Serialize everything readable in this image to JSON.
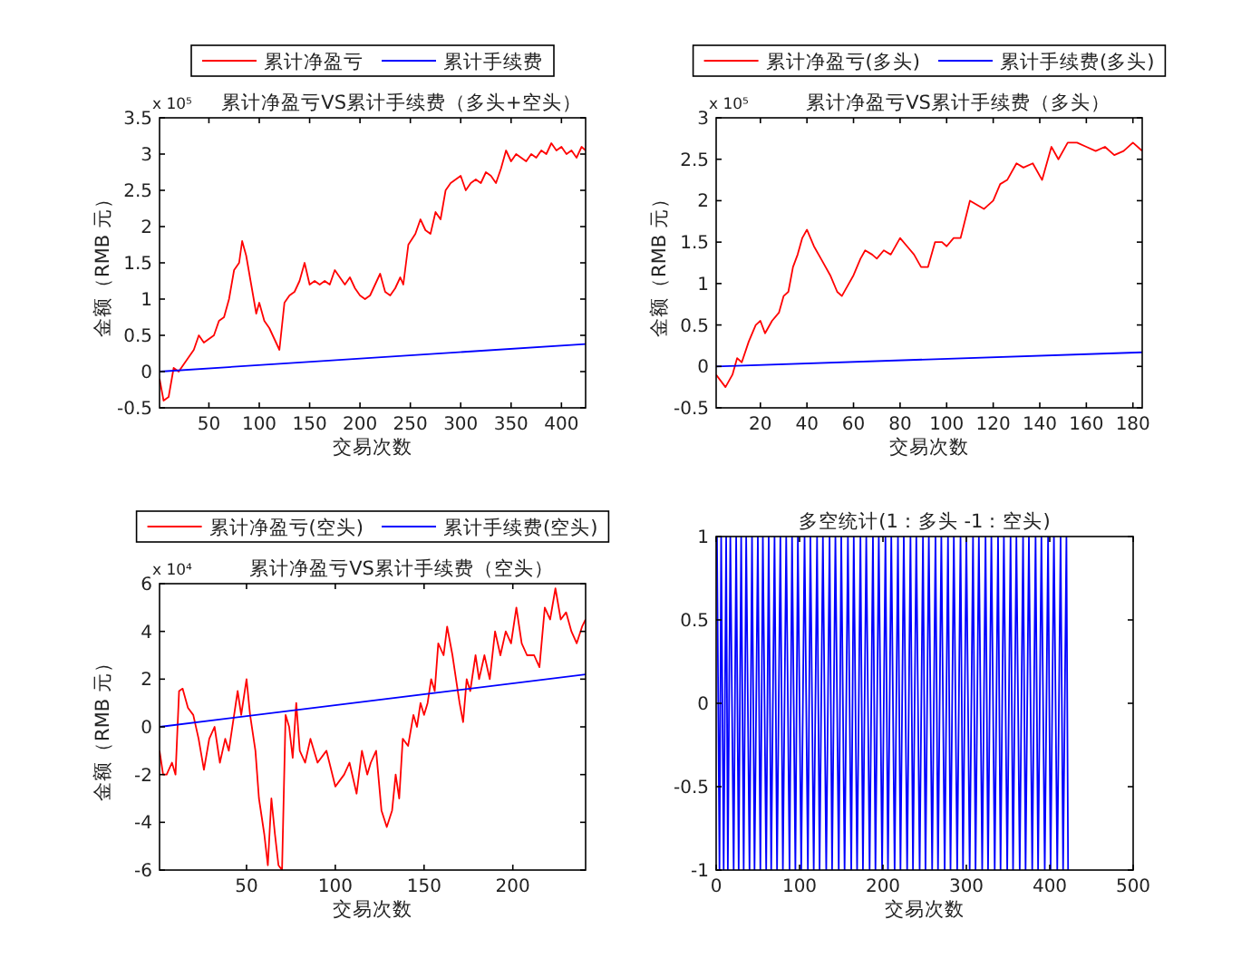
{
  "chart_data": [
    {
      "type": "line",
      "title": "累计净盈亏VS累计手续费（多头+空头）",
      "xlabel": "交易次数",
      "ylabel": "金额（RMB 元）",
      "annotations": [
        "x 10⁵"
      ],
      "legend": "top",
      "xlim": [
        1,
        424
      ],
      "xticks": [
        50,
        100,
        150,
        200,
        250,
        300,
        350,
        400
      ],
      "ylim": [
        -0.5,
        3.5
      ],
      "yticks": [
        -0.5,
        0,
        0.5,
        1,
        1.5,
        2,
        2.5,
        3,
        3.5
      ],
      "series": [
        {
          "name": "累计净盈亏",
          "color": "#ff0000",
          "x": [
            1,
            5,
            10,
            15,
            20,
            25,
            30,
            35,
            40,
            45,
            50,
            55,
            60,
            65,
            70,
            75,
            80,
            83,
            87,
            92,
            97,
            100,
            105,
            110,
            115,
            120,
            125,
            130,
            135,
            140,
            145,
            150,
            155,
            160,
            165,
            170,
            175,
            180,
            185,
            190,
            195,
            200,
            205,
            210,
            215,
            220,
            225,
            230,
            235,
            240,
            243,
            248,
            255,
            260,
            265,
            270,
            275,
            280,
            285,
            290,
            295,
            300,
            305,
            310,
            315,
            320,
            325,
            330,
            335,
            340,
            345,
            350,
            355,
            360,
            365,
            370,
            375,
            380,
            385,
            390,
            395,
            400,
            405,
            410,
            415,
            420,
            424
          ],
          "values": [
            -0.1,
            -0.4,
            -0.35,
            0.05,
            0,
            0.1,
            0.2,
            0.3,
            0.5,
            0.4,
            0.45,
            0.5,
            0.7,
            0.75,
            1.0,
            1.4,
            1.5,
            1.8,
            1.6,
            1.2,
            0.8,
            0.95,
            0.7,
            0.6,
            0.45,
            0.3,
            0.95,
            1.05,
            1.1,
            1.25,
            1.5,
            1.2,
            1.25,
            1.2,
            1.25,
            1.2,
            1.4,
            1.3,
            1.2,
            1.3,
            1.15,
            1.05,
            1.0,
            1.05,
            1.2,
            1.35,
            1.1,
            1.05,
            1.15,
            1.3,
            1.2,
            1.75,
            1.9,
            2.1,
            1.95,
            1.9,
            2.2,
            2.1,
            2.5,
            2.6,
            2.65,
            2.7,
            2.5,
            2.6,
            2.65,
            2.6,
            2.75,
            2.7,
            2.6,
            2.8,
            3.05,
            2.9,
            3.0,
            2.95,
            2.9,
            3.0,
            2.95,
            3.05,
            3.0,
            3.15,
            3.05,
            3.1,
            3.0,
            3.05,
            2.95,
            3.1,
            3.05
          ]
        },
        {
          "name": "累计手续费",
          "color": "#0000ff",
          "x": [
            1,
            424
          ],
          "values": [
            0,
            0.38
          ]
        }
      ]
    },
    {
      "type": "line",
      "title": "累计净盈亏VS累计手续费（多头）",
      "xlabel": "交易次数",
      "ylabel": "金额（RMB 元）",
      "annotations": [
        "x 10⁵"
      ],
      "legend": "top",
      "xlim": [
        1,
        184
      ],
      "xticks": [
        20,
        40,
        60,
        80,
        100,
        120,
        140,
        160,
        180
      ],
      "ylim": [
        -0.5,
        3
      ],
      "yticks": [
        -0.5,
        0,
        0.5,
        1,
        1.5,
        2,
        2.5,
        3
      ],
      "series": [
        {
          "name": "累计净盈亏(多头)",
          "color": "#ff0000",
          "x": [
            1,
            5,
            8,
            10,
            12,
            15,
            18,
            20,
            22,
            25,
            28,
            30,
            32,
            34,
            36,
            38,
            40,
            43,
            46,
            50,
            53,
            55,
            58,
            60,
            63,
            65,
            68,
            70,
            73,
            76,
            80,
            83,
            86,
            89,
            92,
            95,
            98,
            100,
            103,
            106,
            110,
            113,
            116,
            120,
            123,
            126,
            130,
            133,
            137,
            141,
            145,
            148,
            152,
            156,
            160,
            164,
            168,
            172,
            176,
            180,
            184
          ],
          "values": [
            -0.1,
            -0.25,
            -0.1,
            0.1,
            0.05,
            0.3,
            0.5,
            0.55,
            0.4,
            0.55,
            0.65,
            0.85,
            0.9,
            1.2,
            1.35,
            1.55,
            1.65,
            1.45,
            1.3,
            1.1,
            0.9,
            0.85,
            1.0,
            1.1,
            1.3,
            1.4,
            1.35,
            1.3,
            1.4,
            1.35,
            1.55,
            1.45,
            1.35,
            1.2,
            1.2,
            1.5,
            1.5,
            1.45,
            1.55,
            1.55,
            2.0,
            1.95,
            1.9,
            2.0,
            2.2,
            2.25,
            2.45,
            2.4,
            2.45,
            2.25,
            2.65,
            2.5,
            2.7,
            2.7,
            2.65,
            2.6,
            2.65,
            2.55,
            2.6,
            2.7,
            2.6
          ]
        },
        {
          "name": "累计手续费(多头)",
          "color": "#0000ff",
          "x": [
            1,
            184
          ],
          "values": [
            0,
            0.17
          ]
        }
      ]
    },
    {
      "type": "line",
      "title": "累计净盈亏VS累计手续费（空头）",
      "xlabel": "交易次数",
      "ylabel": "金额（RMB 元）",
      "annotations": [
        "x 10⁴"
      ],
      "legend": "top",
      "xlim": [
        1,
        241
      ],
      "xticks": [
        50,
        100,
        150,
        200
      ],
      "ylim": [
        -6,
        6
      ],
      "yticks": [
        -6,
        -4,
        -2,
        0,
        2,
        4,
        6
      ],
      "series": [
        {
          "name": "累计净盈亏(空头)",
          "color": "#ff0000",
          "x": [
            1,
            3,
            5,
            8,
            10,
            12,
            14,
            17,
            20,
            23,
            26,
            29,
            32,
            35,
            38,
            40,
            43,
            45,
            47,
            50,
            52,
            55,
            57,
            60,
            62,
            64,
            66,
            68,
            70,
            72,
            74,
            76,
            78,
            80,
            83,
            86,
            90,
            95,
            100,
            105,
            108,
            112,
            115,
            118,
            120,
            123,
            126,
            129,
            132,
            134,
            136,
            138,
            141,
            144,
            146,
            148,
            150,
            152,
            154,
            156,
            158,
            161,
            163,
            166,
            168,
            170,
            172,
            174,
            176,
            179,
            181,
            184,
            187,
            190,
            193,
            196,
            199,
            202,
            205,
            208,
            212,
            215,
            218,
            221,
            224,
            227,
            230,
            233,
            236,
            239,
            241
          ],
          "values": [
            -1,
            -2,
            -2,
            -1.5,
            -2,
            1.5,
            1.6,
            0.8,
            0.5,
            -0.5,
            -1.8,
            -0.5,
            0,
            -1.5,
            -0.5,
            -1,
            0.5,
            1.5,
            0.5,
            2,
            0.5,
            -1,
            -3,
            -4.5,
            -5.8,
            -3,
            -4.5,
            -5.8,
            -6,
            0.5,
            0,
            -1.3,
            1,
            -1,
            -1.5,
            -0.5,
            -1.5,
            -1,
            -2.5,
            -2,
            -1.5,
            -2.8,
            -1,
            -2,
            -1.5,
            -1,
            -3.5,
            -4.2,
            -3.5,
            -2,
            -3,
            -0.5,
            -0.8,
            0.5,
            0,
            1,
            0.5,
            1,
            2,
            1.5,
            3.5,
            3,
            4.2,
            3,
            2,
            1,
            0.2,
            2,
            1.5,
            3,
            2,
            3,
            2,
            4,
            3,
            4,
            3.5,
            5,
            3.5,
            3,
            3,
            2.5,
            5,
            4.5,
            5.8,
            4.5,
            4.8,
            4,
            3.5,
            4.2,
            4.5
          ]
        },
        {
          "name": "累计手续费(空头)",
          "color": "#0000ff",
          "x": [
            1,
            241
          ],
          "values": [
            0,
            2.2
          ]
        }
      ]
    },
    {
      "type": "line",
      "title": "多空统计(1：多头 -1：空头)",
      "xlabel": "交易次数",
      "xlim": [
        0,
        500
      ],
      "xticks": [
        0,
        100,
        200,
        300,
        400,
        500
      ],
      "ylim": [
        -1,
        1
      ],
      "yticks": [
        -1,
        -0.5,
        0,
        0.5,
        1
      ],
      "series": [
        {
          "color": "#0000ff",
          "x": [
            1,
            4,
            6,
            9,
            12,
            14,
            17,
            21,
            24,
            27,
            30,
            33,
            36,
            40,
            43,
            46,
            50,
            53,
            56,
            60,
            63,
            66,
            70,
            73,
            77,
            80,
            84,
            88,
            91,
            95,
            98,
            102,
            106,
            110,
            113,
            117,
            121,
            124,
            128,
            132,
            136,
            139,
            143,
            147,
            150,
            154,
            158,
            162,
            165,
            169,
            173,
            176,
            180,
            184,
            188,
            191,
            195,
            199,
            203,
            206,
            210,
            214,
            218,
            221,
            225,
            229,
            233,
            236,
            240,
            244,
            248,
            251,
            255,
            259,
            263,
            266,
            270,
            274,
            278,
            281,
            285,
            289,
            293,
            296,
            300,
            304,
            308,
            311,
            315,
            319,
            323,
            326,
            330,
            334,
            338,
            341,
            345,
            349,
            353,
            356,
            360,
            364,
            368,
            371,
            375,
            379,
            383,
            386,
            390,
            394,
            398,
            401,
            405,
            409,
            413,
            416,
            420,
            422
          ],
          "values": [
            1,
            -1,
            1,
            -1,
            1,
            -1,
            1,
            -1,
            1,
            -1,
            1,
            -1,
            1,
            -1,
            1,
            -1,
            1,
            -1,
            1,
            -1,
            1,
            -1,
            1,
            -1,
            1,
            -1,
            1,
            -1,
            1,
            -1,
            1,
            -1,
            1,
            -1,
            1,
            -1,
            1,
            -1,
            1,
            -1,
            1,
            -1,
            1,
            -1,
            1,
            -1,
            1,
            -1,
            1,
            -1,
            1,
            -1,
            1,
            -1,
            1,
            -1,
            1,
            -1,
            1,
            -1,
            1,
            -1,
            1,
            -1,
            1,
            -1,
            1,
            -1,
            1,
            -1,
            1,
            -1,
            1,
            -1,
            1,
            -1,
            1,
            -1,
            1,
            -1,
            1,
            -1,
            1,
            -1,
            1,
            -1,
            1,
            -1,
            1,
            -1,
            1,
            -1,
            1,
            -1,
            1,
            -1,
            1,
            -1,
            1,
            -1,
            1,
            -1,
            1,
            -1,
            1,
            -1,
            1,
            -1,
            1,
            -1,
            1,
            -1,
            1,
            -1,
            1,
            -1,
            1,
            -1
          ]
        }
      ]
    }
  ]
}
